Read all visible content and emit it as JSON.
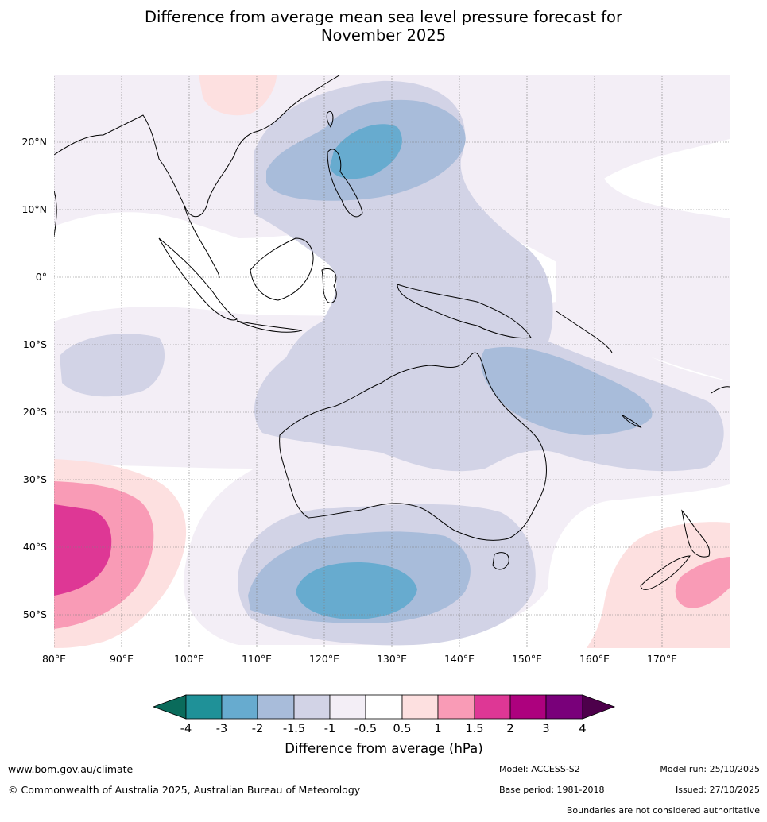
{
  "title_line1": "Difference from average mean sea level pressure forecast for",
  "title_line2": "November 2025",
  "lon_labels": [
    "80°E",
    "90°E",
    "100°E",
    "110°E",
    "120°E",
    "130°E",
    "140°E",
    "150°E",
    "160°E",
    "170°E"
  ],
  "lat_labels": [
    "20°N",
    "10°N",
    "0°",
    "10°S",
    "20°S",
    "30°S",
    "40°S",
    "50°S"
  ],
  "colorbar": {
    "title": "Difference from average (hPa)",
    "ticks": [
      "-4",
      "-3",
      "-2",
      "-1.5",
      "-1",
      "-0.5",
      "0.5",
      "1",
      "1.5",
      "2",
      "3",
      "4"
    ],
    "colors": [
      "#0a6b5b",
      "#1f9198",
      "#67abcf",
      "#a8bcda",
      "#d2d3e6",
      "#f3eef6",
      "#ffffff",
      "#fde0e0",
      "#f99bb6",
      "#de3795",
      "#ad017e",
      "#79007a",
      "#4d004b"
    ]
  },
  "footer": {
    "url": "www.bom.gov.au/climate",
    "copyright": "© Commonwealth of Australia 2025, Australian Bureau of Meteorology",
    "model": "Model: ACCESS-S2",
    "base_period": "Base period: 1981-2018",
    "model_run": "Model run: 25/10/2025",
    "issued": "Issued: 27/10/2025",
    "disclaimer": "Boundaries are not considered authoritative"
  }
}
